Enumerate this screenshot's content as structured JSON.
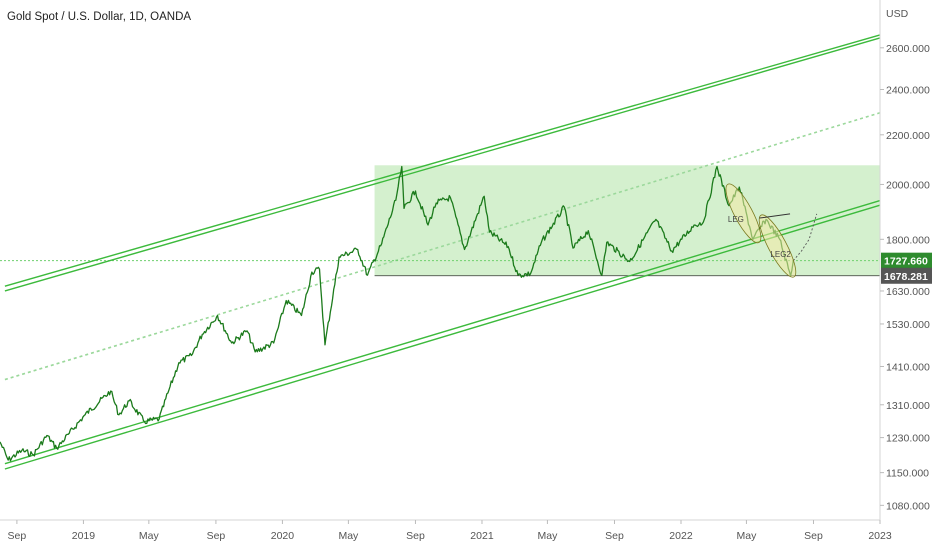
{
  "title": "Gold Spot / U.S. Dollar, 1D, OANDA",
  "colors": {
    "candle": "#1b7a1b",
    "channel": "#3cba3c",
    "zone": "#c9ecc2",
    "mid": "#9bd89b",
    "hline": "#6fcf6f",
    "marker_tag": "#2e8b2e",
    "last_tag": "#555555",
    "ellipse": "#f3eaa4"
  },
  "chart_data": {
    "type": "line",
    "series": [
      {
        "values": [
          [
            "2018-08-01",
            1220
          ],
          [
            "2018-08-16",
            1178
          ],
          [
            "2018-09-10",
            1200
          ],
          [
            "2018-10-01",
            1190
          ],
          [
            "2018-10-26",
            1235
          ],
          [
            "2018-11-13",
            1205
          ],
          [
            "2018-12-06",
            1240
          ],
          [
            "2019-01-04",
            1285
          ],
          [
            "2019-02-20",
            1345
          ],
          [
            "2019-03-07",
            1285
          ],
          [
            "2019-03-26",
            1320
          ],
          [
            "2019-04-23",
            1268
          ],
          [
            "2019-05-20",
            1275
          ],
          [
            "2019-06-05",
            1340
          ],
          [
            "2019-06-25",
            1420
          ],
          [
            "2019-07-18",
            1440
          ],
          [
            "2019-08-07",
            1500
          ],
          [
            "2019-09-04",
            1555
          ],
          [
            "2019-09-30",
            1475
          ],
          [
            "2019-10-28",
            1510
          ],
          [
            "2019-11-12",
            1450
          ],
          [
            "2019-12-16",
            1475
          ],
          [
            "2020-01-08",
            1600
          ],
          [
            "2020-02-05",
            1555
          ],
          [
            "2020-02-24",
            1690
          ],
          [
            "2020-03-09",
            1700
          ],
          [
            "2020-03-19",
            1470
          ],
          [
            "2020-04-14",
            1740
          ],
          [
            "2020-05-18",
            1765
          ],
          [
            "2020-06-05",
            1680
          ],
          [
            "2020-07-01",
            1785
          ],
          [
            "2020-07-27",
            1940
          ],
          [
            "2020-08-07",
            2070
          ],
          [
            "2020-08-11",
            1910
          ],
          [
            "2020-09-01",
            1975
          ],
          [
            "2020-09-24",
            1850
          ],
          [
            "2020-10-09",
            1930
          ],
          [
            "2020-11-04",
            1950
          ],
          [
            "2020-11-30",
            1765
          ],
          [
            "2021-01-05",
            1955
          ],
          [
            "2021-01-15",
            1825
          ],
          [
            "2021-02-18",
            1775
          ],
          [
            "2021-03-08",
            1680
          ],
          [
            "2021-03-31",
            1685
          ],
          [
            "2021-04-20",
            1790
          ],
          [
            "2021-06-01",
            1915
          ],
          [
            "2021-06-17",
            1770
          ],
          [
            "2021-07-15",
            1830
          ],
          [
            "2021-08-09",
            1680
          ],
          [
            "2021-08-18",
            1790
          ],
          [
            "2021-09-29",
            1725
          ],
          [
            "2021-11-16",
            1870
          ],
          [
            "2021-12-15",
            1760
          ],
          [
            "2022-01-25",
            1850
          ],
          [
            "2022-02-11",
            1860
          ],
          [
            "2022-03-08",
            2070
          ],
          [
            "2022-03-30",
            1920
          ],
          [
            "2022-04-18",
            1990
          ],
          [
            "2022-05-13",
            1800
          ],
          [
            "2022-06-06",
            1870
          ],
          [
            "2022-07-01",
            1800
          ],
          [
            "2022-07-21",
            1678
          ],
          [
            "2022-07-26",
            1727.66
          ]
        ]
      }
    ],
    "projection": [
      [
        "2022-07-26",
        1727.66
      ],
      [
        "2022-08-10",
        1760
      ],
      [
        "2022-08-24",
        1800
      ],
      [
        "2022-09-07",
        1890
      ]
    ],
    "channel_lines": [
      {
        "from": [
          "2018-08-10",
          1158
        ],
        "to": [
          "2023-01-01",
          1922
        ]
      },
      {
        "from": [
          "2018-08-10",
          1170
        ],
        "to": [
          "2023-01-01",
          1939
        ]
      },
      {
        "from": [
          "2018-08-10",
          1630
        ],
        "to": [
          "2023-01-01",
          2650
        ]
      },
      {
        "from": [
          "2018-08-10",
          1645
        ],
        "to": [
          "2023-01-01",
          2665
        ]
      }
    ],
    "mid_line": {
      "from": [
        "2018-08-10",
        1375
      ],
      "to": [
        "2023-01-01",
        2295
      ]
    },
    "range_zone": {
      "x_from": "2020-06-18",
      "y_from": 1678,
      "y_to": 2075
    },
    "leg_label": "LEG",
    "leg2_label": "LEG2",
    "x_ticks": [
      [
        "2018-09-01",
        "Sep"
      ],
      [
        "2019-01-01",
        "2019"
      ],
      [
        "2019-05-01",
        "May"
      ],
      [
        "2019-09-01",
        "Sep"
      ],
      [
        "2020-01-01",
        "2020"
      ],
      [
        "2020-05-01",
        "May"
      ],
      [
        "2020-09-01",
        "Sep"
      ],
      [
        "2021-01-01",
        "2021"
      ],
      [
        "2021-05-01",
        "May"
      ],
      [
        "2021-09-01",
        "Sep"
      ],
      [
        "2022-01-01",
        "2022"
      ],
      [
        "2022-05-01",
        "May"
      ],
      [
        "2022-09-01",
        "Sep"
      ],
      [
        "2023-01-01",
        "2023"
      ]
    ],
    "y_ticks": [
      "2600.000",
      "2400.000",
      "2200.000",
      "2000.000",
      "1800.000",
      "1630.000",
      "1530.000",
      "1410.000",
      "1310.000",
      "1230.000",
      "1150.000",
      "1080.000"
    ],
    "y_axis_unit": "USD",
    "x_range": [
      "2018-08-01",
      "2023-01-01"
    ],
    "y_scale": "log",
    "ylim": [
      1050,
      2850
    ],
    "last_price": "1727.660",
    "marker_price": "1678.281"
  }
}
